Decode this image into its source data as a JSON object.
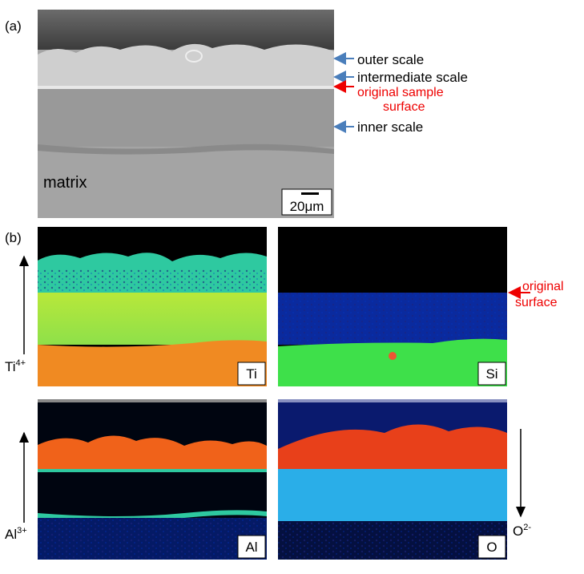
{
  "panel_a": {
    "label": "(a)",
    "annotations": [
      "outer scale",
      "intermediate scale",
      "original sample",
      "surface",
      "inner scale"
    ],
    "region": "matrix",
    "scale_bar": "20μm"
  },
  "panel_b": {
    "label": "(b)",
    "maps": [
      "Ti",
      "Si",
      "Al",
      "O"
    ],
    "annotation": [
      "original",
      "surface"
    ],
    "ions": [
      {
        "ion": "Ti",
        "charge": "4+"
      },
      {
        "ion": "Al",
        "charge": "3+"
      },
      {
        "ion": "O",
        "charge": "2-"
      }
    ]
  }
}
